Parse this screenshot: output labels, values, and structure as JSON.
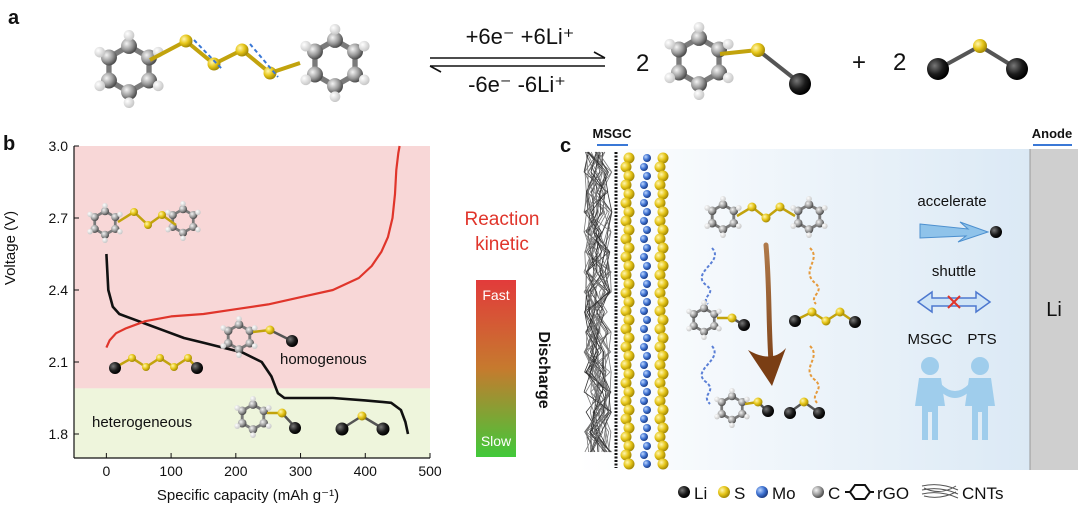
{
  "panel_a": {
    "label": "a",
    "coefficient_1": "2",
    "plus": "+",
    "coefficient_2": "2",
    "arrow_top": "+6e⁻ +6Li⁺",
    "arrow_bottom": "-6e⁻ -6Li⁺"
  },
  "panel_b": {
    "label": "b",
    "ylabel": "Voltage (V)",
    "xlabel": "Specific capacity (mAh g⁻¹)",
    "region_homo": "homogenous",
    "region_hetero": "heterogeneous",
    "reaction_kinetic_line1": "Reaction",
    "reaction_kinetic_line2": "kinetic",
    "fast": "Fast",
    "slow": "Slow",
    "discharge": "Discharge",
    "colors": {
      "homo": "#f8d7d7",
      "hetero": "#eef5dc",
      "charge": "#e0352b",
      "discharge": "#111111"
    }
  },
  "chart_data": {
    "type": "line",
    "xlabel": "Specific capacity (mAh g⁻¹)",
    "ylabel": "Voltage (V)",
    "xlim": [
      -50,
      500
    ],
    "ylim": [
      1.7,
      3.0
    ],
    "x_ticks": [
      "0",
      "100",
      "200",
      "300",
      "400",
      "500"
    ],
    "y_ticks": [
      "1.8",
      "2.1",
      "2.4",
      "2.7",
      "3.0"
    ],
    "series": [
      {
        "color": "#111111",
        "x": [
          0,
          3,
          10,
          20,
          40,
          60,
          90,
          120,
          150,
          180,
          210,
          240,
          255,
          265,
          275,
          300,
          350,
          400,
          440,
          455,
          462,
          466
        ],
        "y": [
          2.55,
          2.4,
          2.33,
          2.3,
          2.28,
          2.26,
          2.23,
          2.2,
          2.18,
          2.16,
          2.14,
          2.1,
          2.04,
          1.97,
          1.95,
          1.95,
          1.95,
          1.94,
          1.93,
          1.9,
          1.85,
          1.8
        ]
      },
      {
        "color": "#e0352b",
        "x": [
          0,
          5,
          15,
          30,
          60,
          100,
          150,
          200,
          250,
          300,
          350,
          390,
          410,
          425,
          435,
          442,
          446,
          448,
          451,
          453
        ],
        "y": [
          2.16,
          2.19,
          2.22,
          2.24,
          2.27,
          2.29,
          2.3,
          2.32,
          2.34,
          2.37,
          2.4,
          2.45,
          2.5,
          2.56,
          2.62,
          2.7,
          2.8,
          2.9,
          2.97,
          3.0
        ]
      }
    ]
  },
  "panel_c": {
    "label": "c",
    "msgc_label": "MSGC",
    "anode_label": "Anode",
    "li_label": "Li",
    "accelerate": "accelerate",
    "shuttle": "shuttle",
    "msgc": "MSGC",
    "pts": "PTS",
    "colors": {
      "li": "#1a1a1a",
      "s": "#e6c619",
      "mo": "#3b6fcf",
      "c": "#6a6a6a",
      "anode": "#cfcfcf"
    }
  },
  "legend": {
    "li": "Li",
    "s": "S",
    "mo": "Mo",
    "c": "C",
    "rgo": "rGO",
    "cnts": "CNTs"
  }
}
